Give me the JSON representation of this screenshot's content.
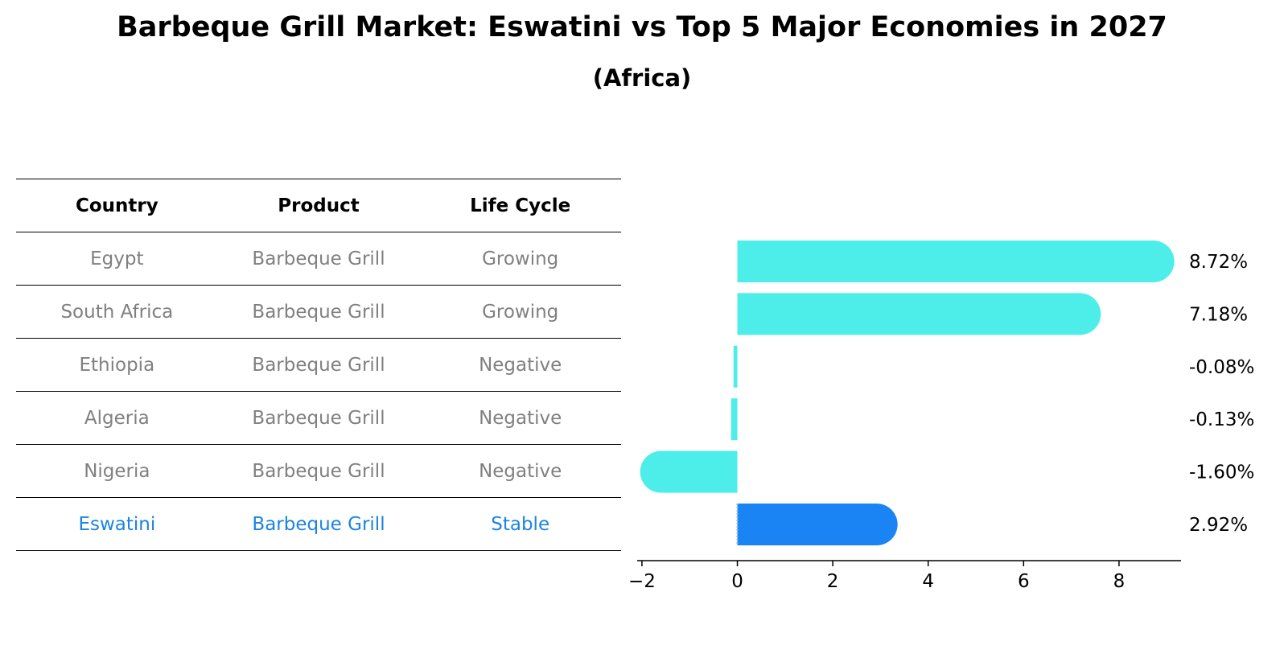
{
  "title": "Barbeque Grill Market: Eswatini vs Top 5 Major Economies in 2027",
  "subtitle": "(Africa)",
  "table": {
    "headers": [
      "Country",
      "Product",
      "Life Cycle"
    ],
    "rows": [
      [
        "Egypt",
        "Barbeque Grill",
        "Growing"
      ],
      [
        "South Africa",
        "Barbeque Grill",
        "Growing"
      ],
      [
        "Ethiopia",
        "Barbeque Grill",
        "Negative"
      ],
      [
        "Algeria",
        "Barbeque Grill",
        "Negative"
      ],
      [
        "Nigeria",
        "Barbeque Grill",
        "Negative"
      ],
      [
        "Eswatini",
        "Barbeque Grill",
        "Stable"
      ]
    ]
  },
  "chart_data": {
    "type": "bar",
    "orientation": "horizontal",
    "categories": [
      "Egypt",
      "South Africa",
      "Ethiopia",
      "Algeria",
      "Nigeria",
      "Eswatini"
    ],
    "values": [
      8.72,
      7.18,
      -0.08,
      -0.13,
      -1.6,
      2.92
    ],
    "value_labels": [
      "8.72%",
      "7.18%",
      "-0.08%",
      "-0.13%",
      "-1.60%",
      "2.92%"
    ],
    "highlight": "Eswatini",
    "xticks": [
      "-2",
      "0",
      "2",
      "4",
      "6",
      "8"
    ],
    "xlim": [
      -2.1,
      9.3
    ],
    "grid": false,
    "colors": {
      "bar": "#4deeea",
      "highlight": "#1a84f4"
    }
  }
}
